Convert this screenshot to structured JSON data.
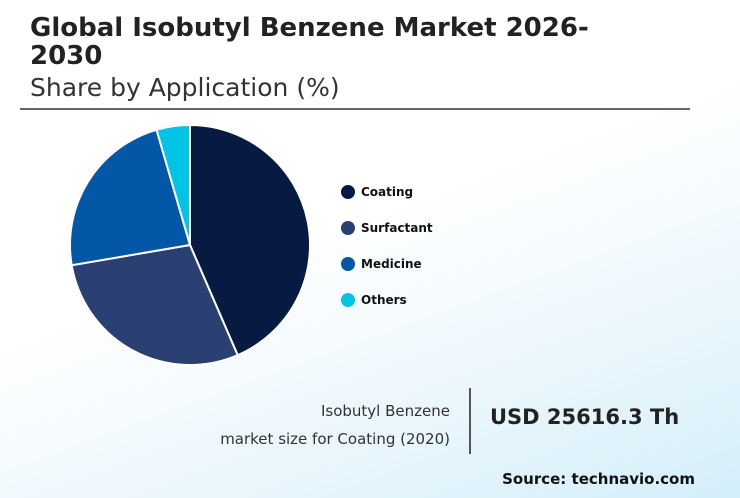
{
  "header": {
    "title": "Global Isobutyl Benzene Market 2026-2030",
    "subtitle": "Share by Application (%)"
  },
  "chart_data": {
    "type": "pie",
    "categories": [
      "Coating",
      "Surfactant",
      "Medicine",
      "Others"
    ],
    "values": [
      43.5,
      28.8,
      23.2,
      4.5
    ],
    "colors": [
      "#071b42",
      "#2a3f72",
      "#0457a6",
      "#00c3e6"
    ],
    "start": "top",
    "direction": "clockwise",
    "legend": "right"
  },
  "footer": {
    "desc_line1": "Isobutyl Benzene",
    "desc_line2": "market size for Coating (2020)",
    "value": "USD 25616.3 Th",
    "source": "Source: technavio.com"
  }
}
